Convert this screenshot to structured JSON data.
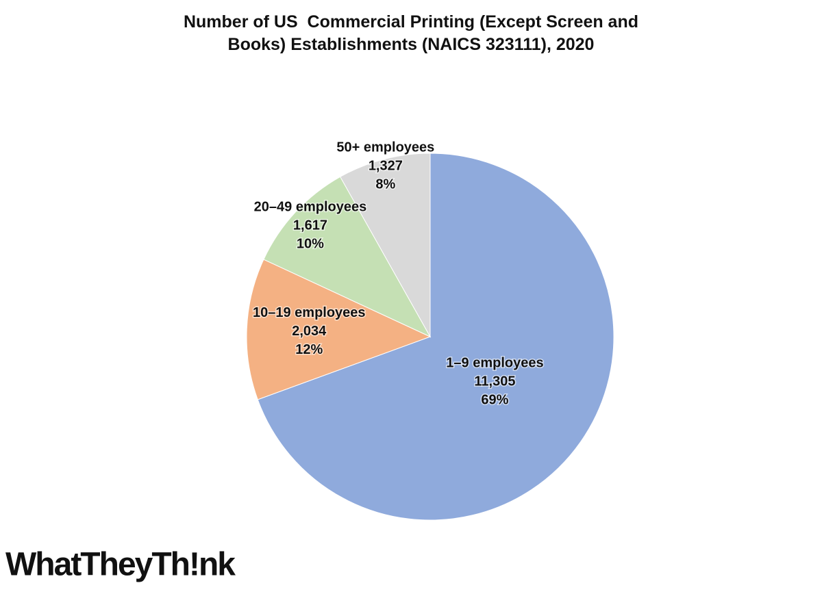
{
  "chart_data": {
    "type": "pie",
    "title": "Number of US  Commercial Printing (Except Screen and Books) Establishments (NAICS 323111), 2020",
    "categories": [
      "1–9 employees",
      "10–19 employees",
      "20–49 employees",
      "50+ employees"
    ],
    "values": [
      11305,
      2034,
      1617,
      1327
    ],
    "value_labels": [
      "11,305",
      "2,034",
      "1,617",
      "1,327"
    ],
    "percent_labels": [
      "69%",
      "12%",
      "10%",
      "8%"
    ],
    "colors": [
      "#8faadc",
      "#f4b183",
      "#c5e0b4",
      "#d9d9d9"
    ]
  },
  "logo": "WhatTheyTh!nk"
}
